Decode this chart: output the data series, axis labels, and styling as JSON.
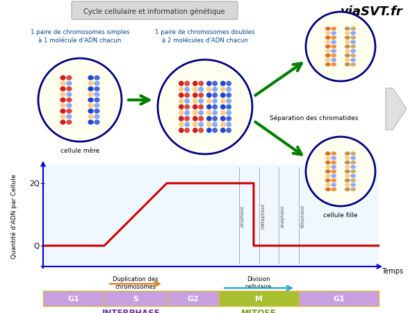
{
  "title": "Cycle cellulaire et information génétique",
  "watermark": "viaSVT.fr",
  "bg_color": "#ffffff",
  "ylabel": "Quantité d'ADN par Cellule",
  "xlabel": "Temps",
  "phases": [
    "G1",
    "S",
    "G2",
    "M",
    "G1"
  ],
  "phase_colors": [
    "#c8a0e0",
    "#c8a0e0",
    "#c8a0e0",
    "#a8c030",
    "#c8a0e0"
  ],
  "interphase_label": "INTERPHASE",
  "mitose_label": "MITOSE",
  "interphase_color": "#7030a0",
  "mitose_color": "#70a020",
  "label_cellule_mere": "cellule mère",
  "label_cellule_fille": "cellule fille",
  "label_separation": "Séparation des chromatides",
  "label_duplication": "Duplication des\nchromosomes",
  "label_division": "Division\ncellulaire",
  "text_simple": "1 paire de chromosomes simples\nà 1 molécule d'ADN chacun",
  "text_double": "1 paire de chromosomes doubles\nà 2 molécules d'ADN chacun",
  "arrow_color": "#008000",
  "duplication_arrow_color": "#e08020",
  "division_arrow_color": "#30a8d8",
  "line_color": "#cc0000",
  "axis_color": "#0000cc",
  "phase_border_color": "#d8b840",
  "mitose_phase_labels": [
    "prophase",
    "métaphase",
    "anaphase",
    "télophase"
  ],
  "cell_yellow": "#fffff0",
  "cell_border": "#000080",
  "chr_red1": "#cc2020",
  "chr_red2": "#dd4444",
  "chr_blue1": "#2244cc",
  "chr_blue2": "#4466dd",
  "chr_orange1": "#e07020",
  "chr_orange2": "#f09040",
  "chr_tan1": "#c09050",
  "chr_tan2": "#d0a870"
}
